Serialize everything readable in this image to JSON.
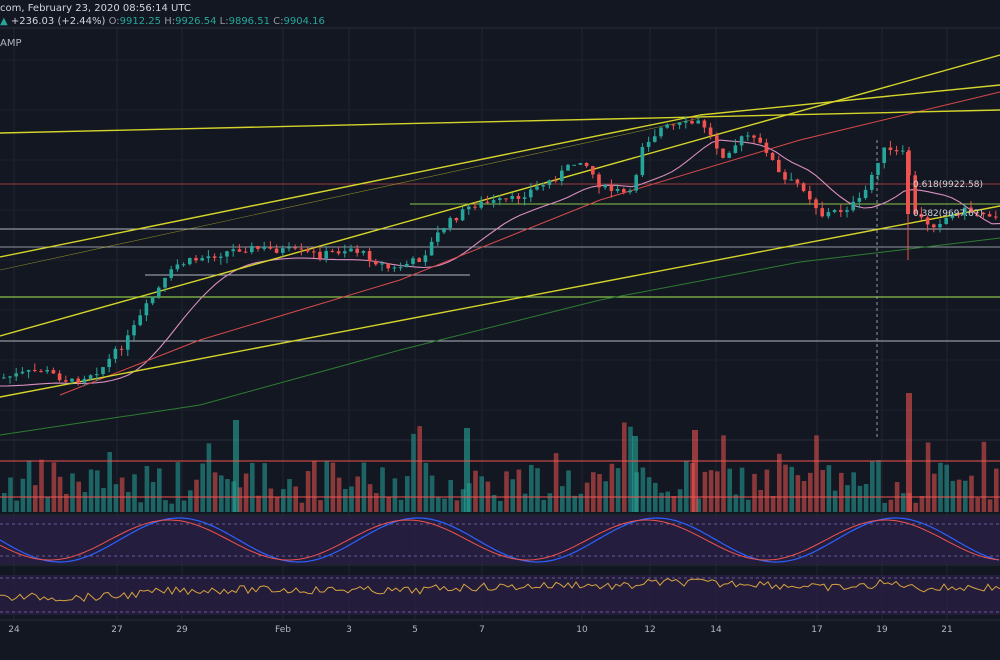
{
  "header": {
    "line1": "com, February 23, 2020 08:56:14 UTC",
    "line2_arrow": "▲",
    "line2_change": "+236.03 (+2.44%)",
    "o_label": "O:",
    "o_val": "9912.25",
    "h_label": "H:",
    "h_val": "9926.54",
    "l_label": "L:",
    "l_val": "9896.51",
    "c_label": "C:",
    "c_val": "9904.16",
    "line3": "AMP"
  },
  "colors": {
    "background": "#131722",
    "up": "#26a69a",
    "down": "#ef5350",
    "trendline": "#d4d42a",
    "horizontal_level": "#b2b5be",
    "fib_level": "#8bc34a",
    "ma_fast": "#d98fbf",
    "ma_mid": "#d84a4a",
    "ma_slow": "#2e7d32",
    "stoch_k": "#2962ff",
    "stoch_d": "#ef5350",
    "oscillator_line": "#d9a441",
    "indicator_band": "#2b1f45"
  },
  "chart_data": {
    "type": "candlestick",
    "x_ticks": [
      "24",
      "27",
      "29",
      "Feb",
      "3",
      "5",
      "7",
      "10",
      "12",
      "14",
      "17",
      "19",
      "21"
    ],
    "annotations": [
      "0.618(9922.58)",
      "0.382(9697.67)"
    ],
    "price_range": [
      8450,
      10250
    ],
    "grid": true,
    "series": [
      {
        "kind": "candles"
      },
      {
        "kind": "volume"
      },
      {
        "kind": "stochastic"
      },
      {
        "kind": "oscillator"
      }
    ]
  }
}
